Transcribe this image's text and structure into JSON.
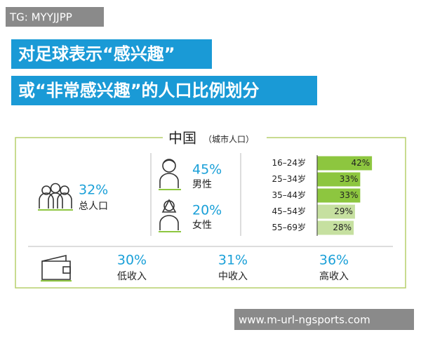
{
  "watermark": "TG: MYYJJPP",
  "title": [
    "对足球表示“感兴趣”",
    "或“非常感兴趣”的人口比例划分"
  ],
  "panel": {
    "title": "中国",
    "subtitle": "（城市人口）",
    "total": {
      "value": "32%",
      "label": "总人口"
    },
    "gender": [
      {
        "value": "45%",
        "label": "男性"
      },
      {
        "value": "20%",
        "label": "女性"
      }
    ],
    "age": {
      "categories": [
        "16–24岁",
        "25–34岁",
        "35–44岁",
        "45–54岁",
        "55–69岁"
      ],
      "values": [
        42,
        33,
        33,
        29,
        28
      ],
      "value_labels": [
        "42%",
        "33%",
        "33%",
        "29%",
        "28%"
      ],
      "colors": [
        "#8dc63f",
        "#8dc63f",
        "#8dc63f",
        "#c6e0a0",
        "#c6e0a0"
      ]
    },
    "income": [
      {
        "value": "30%",
        "label": "低收入"
      },
      {
        "value": "31%",
        "label": "中收入"
      },
      {
        "value": "36%",
        "label": "高收入"
      }
    ]
  },
  "footer": "www.m-url-ngsports.com"
}
